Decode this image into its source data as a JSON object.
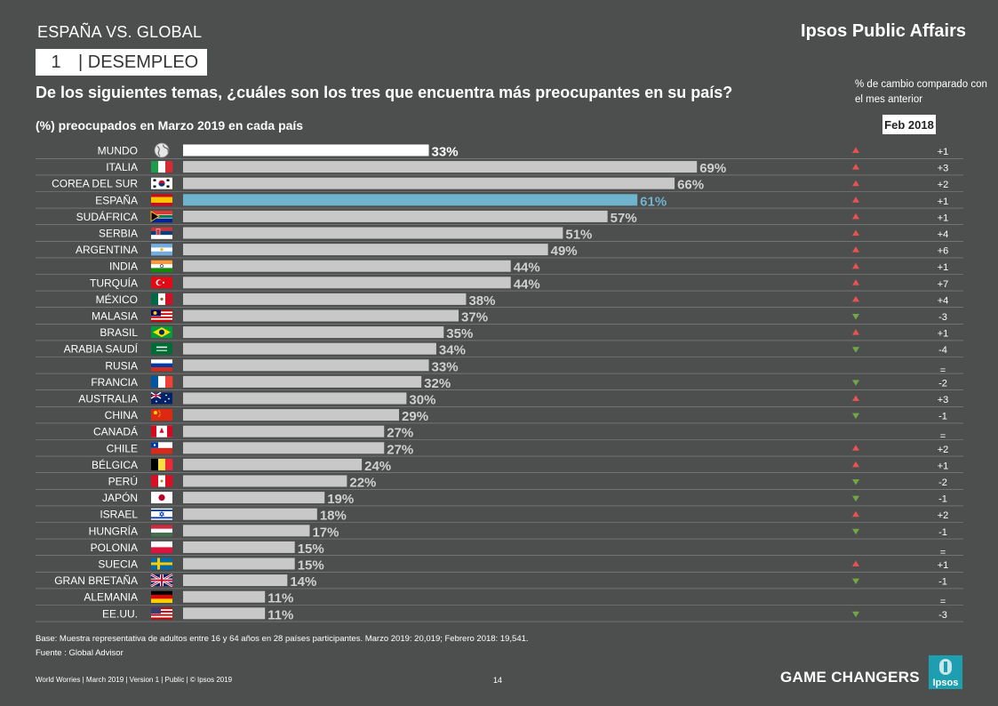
{
  "header": {
    "kicker": "ESPAÑA VS. GLOBAL",
    "brand": "Ipsos Public Affairs",
    "topic_number": "1",
    "topic_label": "| DESEMPLEO",
    "question": "De los siguientes temas, ¿cuáles son los tres que encuentra más preocupantes en su país?",
    "change_note": "% de cambio comparado con el mes anterior",
    "subtitle": "(%) preocupados en Marzo 2019 en cada país",
    "compare_label": "Feb 2018"
  },
  "chart_data": {
    "type": "bar",
    "orientation": "horizontal",
    "title": "(%) preocupados en Marzo 2019 en cada país",
    "xlim": [
      0,
      100
    ],
    "categories": [
      "MUNDO",
      "ITALIA",
      "COREA DEL SUR",
      "ESPAÑA",
      "SUDÁFRICA",
      "SERBIA",
      "ARGENTINA",
      "INDIA",
      "TURQUÍA",
      "MÉXICO",
      "MALASIA",
      "BRASIL",
      "ARABIA SAUDÍ",
      "RUSIA",
      "FRANCIA",
      "AUSTRALIA",
      "CHINA",
      "CANADÁ",
      "CHILE",
      "BÉLGICA",
      "PERÚ",
      "JAPÓN",
      "ISRAEL",
      "HUNGRÍA",
      "POLONIA",
      "SUECIA",
      "GRAN BRETAÑA",
      "ALEMANIA",
      "EE.UU."
    ],
    "values": [
      33,
      69,
      66,
      61,
      57,
      51,
      49,
      44,
      44,
      38,
      37,
      35,
      34,
      33,
      32,
      30,
      29,
      27,
      27,
      24,
      22,
      19,
      18,
      17,
      15,
      15,
      14,
      11,
      11
    ],
    "value_labels": [
      "33%",
      "69%",
      "66%",
      "61%",
      "57%",
      "51%",
      "49%",
      "44%",
      "44%",
      "38%",
      "37%",
      "35%",
      "34%",
      "33%",
      "32%",
      "30%",
      "29%",
      "27%",
      "27%",
      "24%",
      "22%",
      "19%",
      "18%",
      "17%",
      "15%",
      "15%",
      "14%",
      "11%",
      "11%"
    ],
    "highlight": {
      "MUNDO": "#ffffff",
      "ESPAÑA": "#6fb3cd"
    },
    "bar_color": "#c8c8c8",
    "change_direction": [
      "up",
      "up",
      "up",
      "up",
      "up",
      "up",
      "up",
      "up",
      "up",
      "up",
      "down",
      "up",
      "down",
      "same",
      "down",
      "up",
      "down",
      "same",
      "up",
      "up",
      "down",
      "down",
      "up",
      "down",
      "same",
      "up",
      "down",
      "same",
      "down"
    ],
    "change_labels": [
      "+1",
      "+3",
      "+2",
      "+1",
      "+1",
      "+4",
      "+6",
      "+1",
      "+7",
      "+4",
      "-3",
      "+1",
      "-4",
      "=",
      "-2",
      "+3",
      "-1",
      "=",
      "+2",
      "+1",
      "-2",
      "-1",
      "+2",
      "-1",
      "=",
      "+1",
      "-1",
      "=",
      "-3"
    ],
    "up_color": "#e8524f",
    "down_color": "#6fa844",
    "flags": [
      "globe-icon",
      "italy-flag-icon",
      "south-korea-flag-icon",
      "spain-flag-icon",
      "south-africa-flag-icon",
      "serbia-flag-icon",
      "argentina-flag-icon",
      "india-flag-icon",
      "turkey-flag-icon",
      "mexico-flag-icon",
      "malaysia-flag-icon",
      "brazil-flag-icon",
      "saudi-arabia-flag-icon",
      "russia-flag-icon",
      "france-flag-icon",
      "australia-flag-icon",
      "china-flag-icon",
      "canada-flag-icon",
      "chile-flag-icon",
      "belgium-flag-icon",
      "peru-flag-icon",
      "japan-flag-icon",
      "israel-flag-icon",
      "hungary-flag-icon",
      "poland-flag-icon",
      "sweden-flag-icon",
      "great-britain-flag-icon",
      "germany-flag-icon",
      "usa-flag-icon"
    ]
  },
  "footer": {
    "base_note": "Base: Muestra representativa de adultos entre 16 y 64 años en 28 países participantes. Marzo 2019: 20,019; Febrero 2018: 19,541.",
    "source_note": "Fuente : Global Advisor",
    "left": "World Worries  |  March 2019  |  Version 1  |  Public  |  © Ipsos 2019",
    "page_number": "14",
    "tagline": "GAME CHANGERS",
    "logo_text": "Ipsos"
  }
}
